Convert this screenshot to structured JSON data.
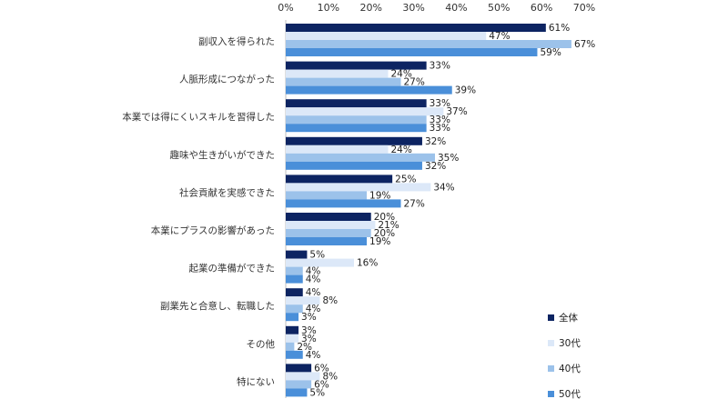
{
  "chart_data": {
    "type": "bar",
    "orientation": "horizontal",
    "categories": [
      "副収入を得られた",
      "人脈形成につながった",
      "本業では得にくいスキルを習得した",
      "趣味や生きがいができた",
      "社会貢献を実感できた",
      "本業にプラスの影響があった",
      "起業の準備ができた",
      "副業先と合意し、転職した",
      "その他",
      "特にない"
    ],
    "series": [
      {
        "name": "全体",
        "color": "#0d2462",
        "values": [
          61,
          33,
          33,
          32,
          25,
          20,
          5,
          4,
          3,
          6
        ]
      },
      {
        "name": "30代",
        "color": "#dce8f8",
        "values": [
          47,
          24,
          37,
          24,
          34,
          21,
          16,
          8,
          3,
          8
        ]
      },
      {
        "name": "40代",
        "color": "#9cc2ea",
        "values": [
          67,
          27,
          33,
          35,
          19,
          20,
          4,
          4,
          2,
          6
        ]
      },
      {
        "name": "50代",
        "color": "#4a8fd9",
        "values": [
          59,
          39,
          33,
          32,
          27,
          19,
          4,
          3,
          4,
          5
        ]
      }
    ],
    "xticks": [
      "0%",
      "10%",
      "20%",
      "30%",
      "40%",
      "50%",
      "60%",
      "70%"
    ],
    "xlim": [
      0,
      70
    ],
    "value_suffix": "%",
    "grid": false,
    "legend_position": "bottom-right"
  }
}
